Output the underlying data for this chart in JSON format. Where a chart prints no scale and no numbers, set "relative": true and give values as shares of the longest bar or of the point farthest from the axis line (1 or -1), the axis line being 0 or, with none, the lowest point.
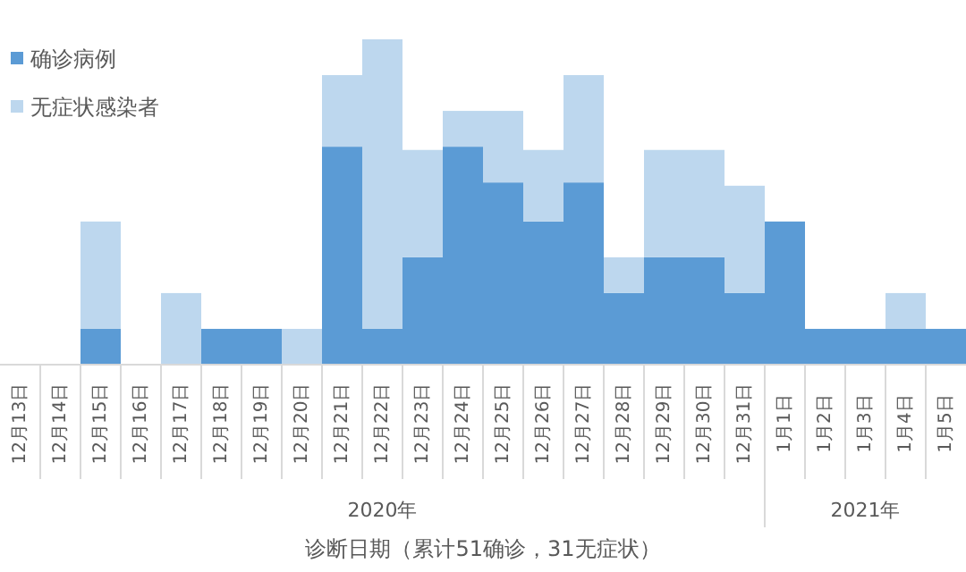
{
  "chart_data": {
    "type": "bar",
    "stacked": true,
    "relative": true,
    "legend": "top left",
    "xlabel": "诊断日期（累计51确诊，31无症状）",
    "annotations": [
      "2020年",
      "2021年"
    ],
    "categories": [
      "12月13日",
      "12月14日",
      "12月15日",
      "12月16日",
      "12月17日",
      "12月18日",
      "12月19日",
      "12月20日",
      "12月21日",
      "12月22日",
      "12月23日",
      "12月24日",
      "12月25日",
      "12月26日",
      "12月27日",
      "12月28日",
      "12月29日",
      "12月30日",
      "12月31日",
      "1月1日",
      "1月2日",
      "1月3日",
      "1月4日",
      "1月5日"
    ],
    "series": [
      {
        "name": "确诊病例",
        "color": "#5b9bd5",
        "values": [
          0,
          0,
          0.11,
          0,
          0,
          0.11,
          0.11,
          0,
          0.67,
          0.11,
          0.33,
          0.67,
          0.56,
          0.44,
          0.56,
          0.22,
          0.33,
          0.33,
          0.22,
          0.44,
          0.11,
          0.11,
          0.11,
          0.11
        ]
      },
      {
        "name": "无症状感染者",
        "color": "#bdd7ee",
        "values": [
          0,
          0,
          0.33,
          0,
          0.22,
          0,
          0,
          0.11,
          0.22,
          0.89,
          0.33,
          0.11,
          0.22,
          0.22,
          0.33,
          0.11,
          0.33,
          0.33,
          0.33,
          0,
          0,
          0,
          0.11,
          0
        ]
      }
    ]
  }
}
